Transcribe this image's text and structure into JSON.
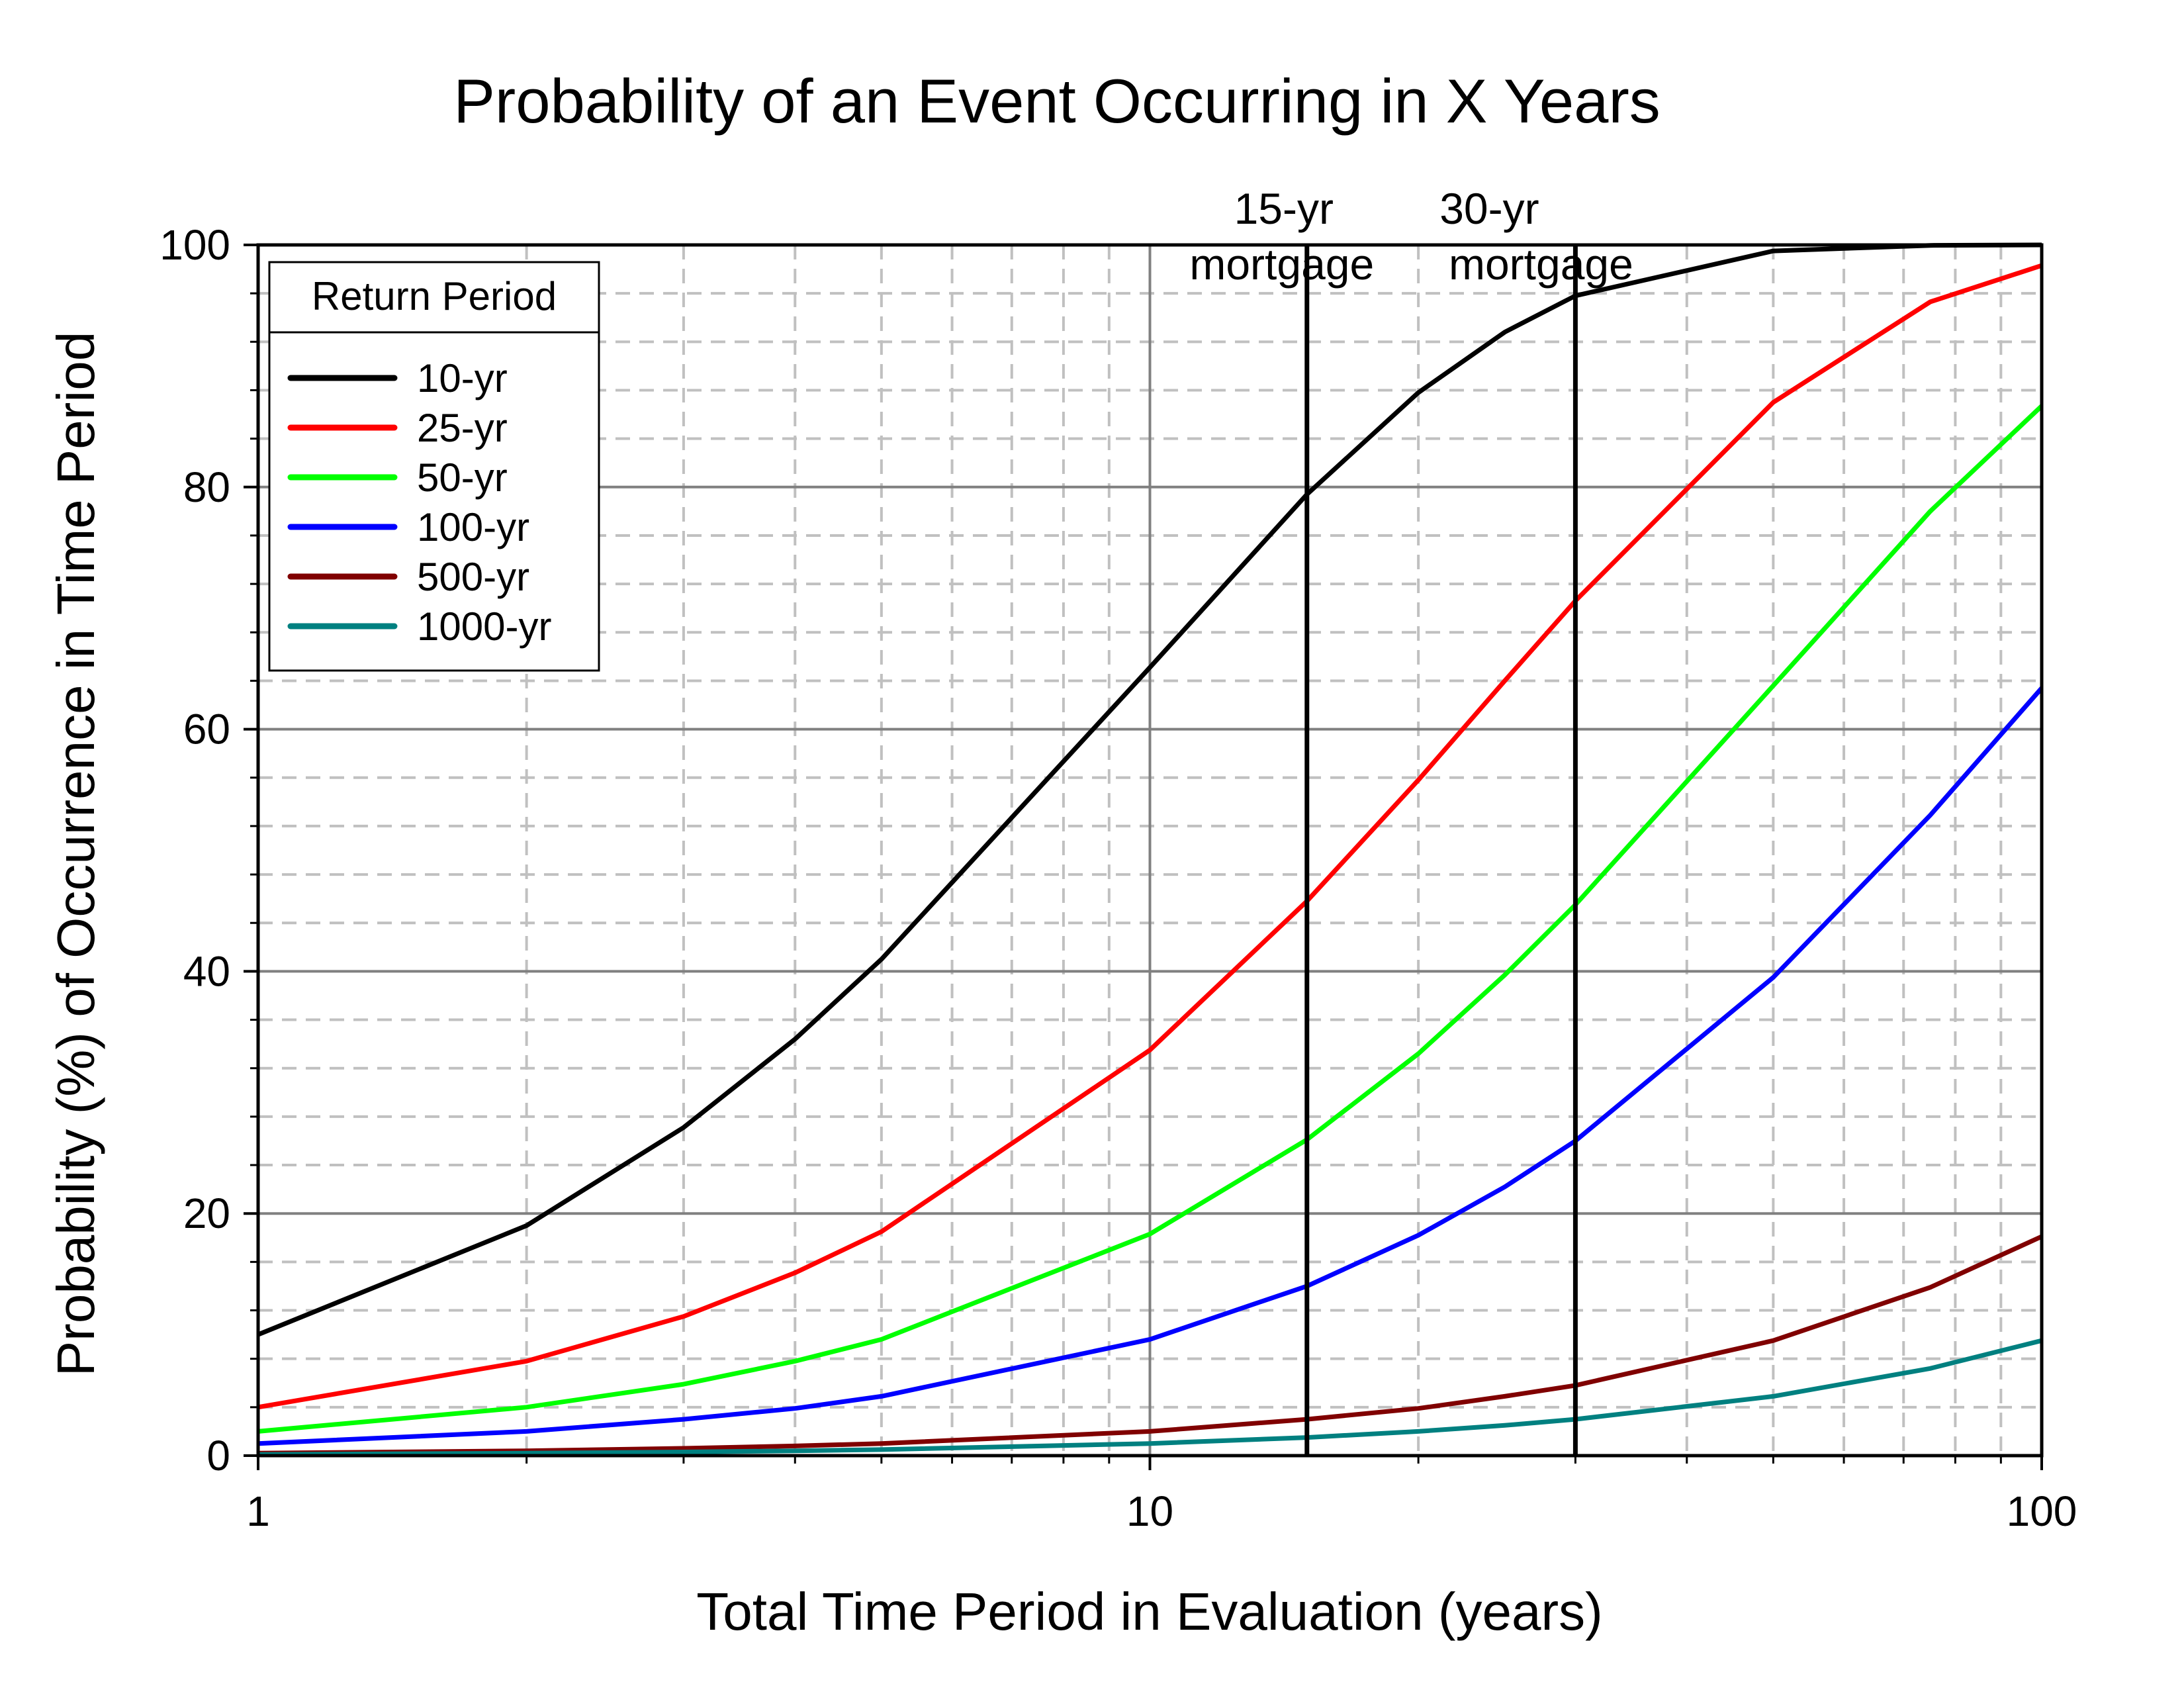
{
  "chart_data": {
    "type": "line",
    "title": "Probability of an Event Occurring in X Years",
    "xlabel": "Total Time Period in Evaluation (years)",
    "ylabel": "Probability (%) of Occurrence in Time Period",
    "x_scale": "log",
    "xlim": [
      1,
      100
    ],
    "ylim": [
      0,
      100
    ],
    "x_ticks": [
      "1",
      "10",
      "100"
    ],
    "y_ticks": [
      "0",
      "20",
      "40",
      "60",
      "80",
      "100"
    ],
    "grid": true,
    "legend": {
      "title": "Return Period",
      "placement": "top-left"
    },
    "x": [
      1,
      2,
      3,
      4,
      5,
      10,
      15,
      20,
      25,
      30,
      50,
      75,
      100
    ],
    "series": [
      {
        "name": "10-yr",
        "color": "#000000",
        "values": [
          10,
          19,
          27.1,
          34.4,
          41.0,
          65.1,
          79.4,
          87.8,
          92.8,
          95.8,
          99.5,
          99.96,
          100
        ]
      },
      {
        "name": "25-yr",
        "color": "#ff0000",
        "values": [
          4,
          7.8,
          11.5,
          15.1,
          18.5,
          33.5,
          45.8,
          55.8,
          64.0,
          70.6,
          87.0,
          95.3,
          98.3
        ]
      },
      {
        "name": "50-yr",
        "color": "#00ff00",
        "values": [
          2,
          4.0,
          5.9,
          7.8,
          9.6,
          18.3,
          26.1,
          33.2,
          39.7,
          45.5,
          63.6,
          78.0,
          86.7
        ]
      },
      {
        "name": "100-yr",
        "color": "#0000ff",
        "values": [
          1,
          2.0,
          3.0,
          3.9,
          4.9,
          9.6,
          14.0,
          18.2,
          22.2,
          26.0,
          39.5,
          52.9,
          63.4
        ]
      },
      {
        "name": "500-yr",
        "color": "#800000",
        "values": [
          0.2,
          0.4,
          0.6,
          0.8,
          1.0,
          2.0,
          3.0,
          3.9,
          4.9,
          5.8,
          9.5,
          13.9,
          18.1
        ]
      },
      {
        "name": "1000-yr",
        "color": "#008080",
        "values": [
          0.1,
          0.2,
          0.3,
          0.4,
          0.5,
          1.0,
          1.5,
          2.0,
          2.5,
          3.0,
          4.9,
          7.2,
          9.5
        ]
      }
    ],
    "annotations": [
      {
        "x": 15,
        "line1": "15-yr",
        "line2": "mortgage"
      },
      {
        "x": 30,
        "line1": "30-yr",
        "line2": "mortgage"
      }
    ]
  }
}
